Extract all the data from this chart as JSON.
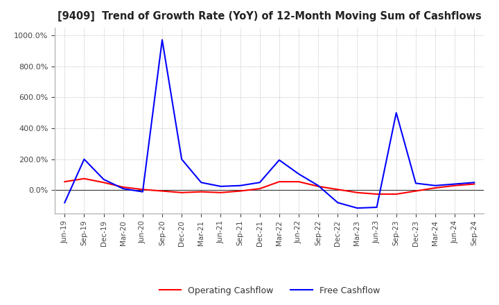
{
  "title": "[9409]  Trend of Growth Rate (YoY) of 12-Month Moving Sum of Cashflows",
  "x_labels": [
    "Jun-19",
    "Sep-19",
    "Dec-19",
    "Mar-20",
    "Jun-20",
    "Sep-20",
    "Dec-20",
    "Mar-21",
    "Jun-21",
    "Sep-21",
    "Dec-21",
    "Mar-22",
    "Jun-22",
    "Sep-22",
    "Dec-22",
    "Mar-23",
    "Jun-23",
    "Sep-23",
    "Dec-23",
    "Mar-24",
    "Jun-24",
    "Sep-24"
  ],
  "operating_cashflow": [
    55,
    75,
    50,
    20,
    5,
    -5,
    -15,
    -10,
    -15,
    -5,
    10,
    55,
    55,
    25,
    5,
    -15,
    -25,
    -25,
    -5,
    15,
    30,
    40
  ],
  "free_cashflow": [
    -80,
    200,
    70,
    10,
    -10,
    970,
    200,
    50,
    25,
    30,
    50,
    195,
    105,
    30,
    -80,
    -115,
    -110,
    500,
    45,
    30,
    40,
    50
  ],
  "operating_color": "#ff0000",
  "free_color": "#0000ff",
  "ylim_min": -150,
  "ylim_max": 1050,
  "yticks": [
    0,
    200,
    400,
    600,
    800,
    1000
  ],
  "background_color": "#ffffff",
  "grid_color": "#aaaaaa",
  "legend_labels": [
    "Operating Cashflow",
    "Free Cashflow"
  ],
  "line_width": 1.5
}
